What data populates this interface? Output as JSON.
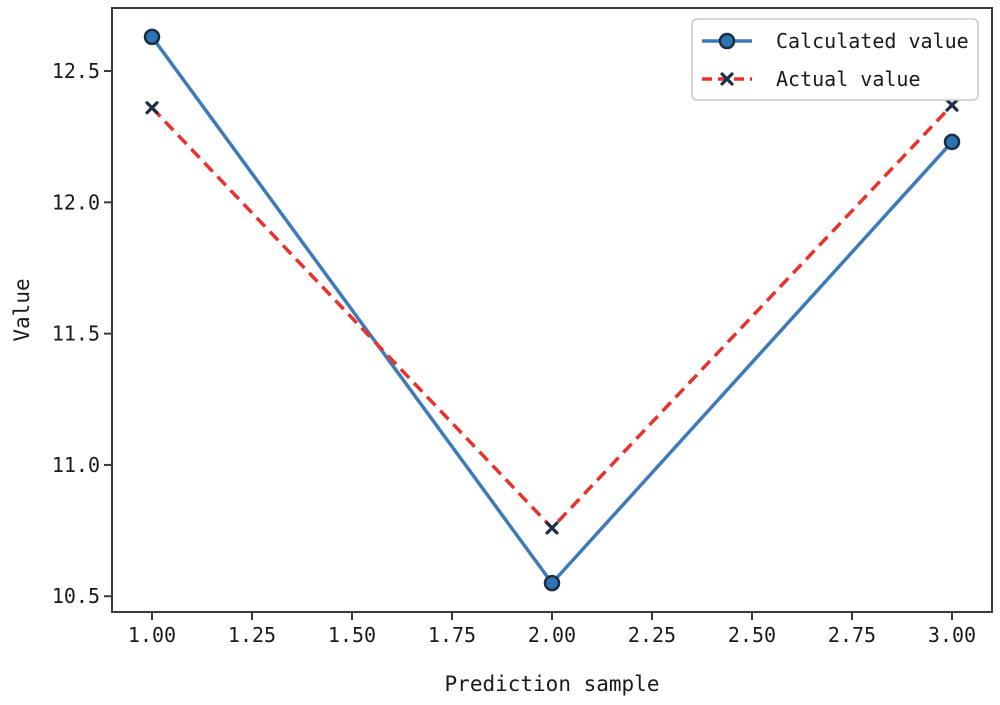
{
  "figure": {
    "background": "#ffffff"
  },
  "chart_data": {
    "type": "line",
    "title": "",
    "xlabel": "Prediction sample",
    "ylabel": "Value",
    "x": [
      1,
      2,
      3
    ],
    "series": [
      {
        "name": "Calculated value",
        "values": [
          12.63,
          10.55,
          12.23
        ],
        "line_color": "#3d7ab8",
        "line_style": "solid",
        "marker": "circle",
        "marker_fill": "#2e74b5",
        "marker_edge": "#1a2c3f"
      },
      {
        "name": "Actual value",
        "values": [
          12.36,
          10.76,
          12.37
        ],
        "line_color": "#e8322b",
        "line_style": "dashed",
        "marker": "x",
        "marker_fill": "#2e74b5",
        "marker_edge": "#1b3048"
      }
    ],
    "xlim": [
      0.9,
      3.1
    ],
    "ylim": [
      10.44,
      12.74
    ],
    "xticks": [
      {
        "value": 1.0,
        "label": "1.00"
      },
      {
        "value": 1.25,
        "label": "1.25"
      },
      {
        "value": 1.5,
        "label": "1.50"
      },
      {
        "value": 1.75,
        "label": "1.75"
      },
      {
        "value": 2.0,
        "label": "2.00"
      },
      {
        "value": 2.25,
        "label": "2.25"
      },
      {
        "value": 2.5,
        "label": "2.50"
      },
      {
        "value": 2.75,
        "label": "2.75"
      },
      {
        "value": 3.0,
        "label": "3.00"
      }
    ],
    "yticks": [
      {
        "value": 10.5,
        "label": "10.5"
      },
      {
        "value": 11.0,
        "label": "11.0"
      },
      {
        "value": 11.5,
        "label": "11.5"
      },
      {
        "value": 12.0,
        "label": "12.0"
      },
      {
        "value": 12.5,
        "label": "12.5"
      }
    ],
    "grid": false,
    "legend_position": "upper right",
    "legend_entries": [
      "Calculated value",
      "Actual value"
    ],
    "colors": {
      "spine": "#3a3a3a",
      "tick": "#3a3a3a",
      "text": "#1a1a1a",
      "legend_border": "#c8c8c8",
      "legend_background": "#ffffff"
    }
  }
}
